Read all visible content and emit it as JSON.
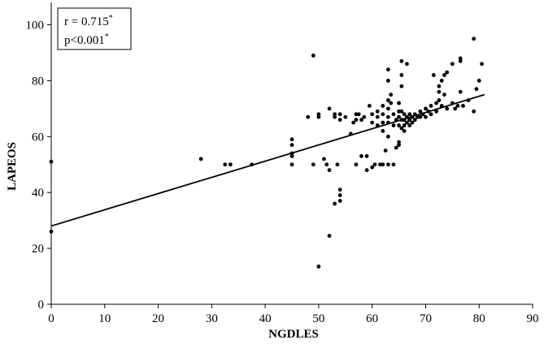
{
  "chart_data": {
    "type": "scatter",
    "title": "",
    "xlabel": "NGDLES",
    "ylabel": "LAPEOS",
    "xlim": [
      0,
      90
    ],
    "ylim": [
      0,
      108
    ],
    "xticks": [
      0,
      10,
      20,
      30,
      40,
      50,
      60,
      70,
      80,
      90
    ],
    "yticks": [
      0,
      20,
      40,
      60,
      80,
      100
    ],
    "grid": false,
    "annotation": {
      "r_text": "r = 0.715",
      "r_sup": "*",
      "p_text": "p<0.001",
      "p_sup": "*"
    },
    "regression": {
      "x": [
        0,
        81
      ],
      "y": [
        28,
        75
      ]
    },
    "points": [
      [
        0,
        51
      ],
      [
        0,
        26
      ],
      [
        28,
        52
      ],
      [
        32.5,
        50
      ],
      [
        33.5,
        50
      ],
      [
        37.5,
        50
      ],
      [
        45,
        59
      ],
      [
        45,
        57
      ],
      [
        45,
        54
      ],
      [
        45,
        53
      ],
      [
        45,
        50
      ],
      [
        48,
        67
      ],
      [
        49,
        89
      ],
      [
        49,
        50
      ],
      [
        50,
        68
      ],
      [
        50,
        67
      ],
      [
        50,
        13.5
      ],
      [
        51,
        52
      ],
      [
        51.5,
        50
      ],
      [
        52,
        70
      ],
      [
        52,
        48
      ],
      [
        52,
        24.5
      ],
      [
        53,
        67
      ],
      [
        53,
        68
      ],
      [
        53,
        36
      ],
      [
        53.5,
        50
      ],
      [
        54,
        41
      ],
      [
        54,
        39
      ],
      [
        54,
        37
      ],
      [
        54,
        68
      ],
      [
        54,
        66
      ],
      [
        55,
        67
      ],
      [
        56,
        61
      ],
      [
        56.5,
        65
      ],
      [
        57,
        50
      ],
      [
        57,
        68
      ],
      [
        57,
        66
      ],
      [
        57.5,
        68
      ],
      [
        58,
        53
      ],
      [
        58,
        66
      ],
      [
        58.5,
        67
      ],
      [
        59,
        53
      ],
      [
        59,
        48
      ],
      [
        59.5,
        71
      ],
      [
        60,
        68
      ],
      [
        60,
        65
      ],
      [
        60,
        49
      ],
      [
        60.5,
        50
      ],
      [
        61,
        69
      ],
      [
        61,
        67
      ],
      [
        61,
        64
      ],
      [
        61.5,
        50
      ],
      [
        62,
        71
      ],
      [
        62,
        68
      ],
      [
        62,
        65
      ],
      [
        62,
        62
      ],
      [
        62,
        50
      ],
      [
        62.5,
        55
      ],
      [
        63,
        84
      ],
      [
        63,
        80
      ],
      [
        63,
        73
      ],
      [
        63,
        70
      ],
      [
        63,
        67
      ],
      [
        63,
        65
      ],
      [
        63,
        60
      ],
      [
        63,
        50
      ],
      [
        63.5,
        75
      ],
      [
        63.5,
        72
      ],
      [
        64,
        68
      ],
      [
        64,
        64
      ],
      [
        64,
        50
      ],
      [
        64.5,
        66
      ],
      [
        64.5,
        56
      ],
      [
        65,
        72
      ],
      [
        65,
        69
      ],
      [
        65,
        67
      ],
      [
        65,
        64
      ],
      [
        65,
        58
      ],
      [
        65,
        57
      ],
      [
        65.5,
        87
      ],
      [
        65.5,
        82
      ],
      [
        65.5,
        78
      ],
      [
        65.5,
        69
      ],
      [
        65.5,
        66
      ],
      [
        65.5,
        63
      ],
      [
        66,
        68
      ],
      [
        66,
        66
      ],
      [
        66,
        64
      ],
      [
        66,
        62
      ],
      [
        66.5,
        86
      ],
      [
        66.5,
        67
      ],
      [
        66.5,
        65
      ],
      [
        67,
        68
      ],
      [
        67,
        66
      ],
      [
        67,
        64
      ],
      [
        67.5,
        67
      ],
      [
        67.5,
        65
      ],
      [
        68,
        68
      ],
      [
        68,
        66
      ],
      [
        68.5,
        67
      ],
      [
        69,
        69
      ],
      [
        69,
        67
      ],
      [
        69.5,
        68
      ],
      [
        70,
        70
      ],
      [
        70,
        67
      ],
      [
        70.5,
        69
      ],
      [
        71,
        71
      ],
      [
        71,
        68
      ],
      [
        71.5,
        82
      ],
      [
        72,
        72
      ],
      [
        72,
        69
      ],
      [
        72.5,
        78
      ],
      [
        72.5,
        76
      ],
      [
        72.5,
        73
      ],
      [
        73,
        80
      ],
      [
        73,
        71
      ],
      [
        73.5,
        82
      ],
      [
        73.5,
        75
      ],
      [
        74,
        83
      ],
      [
        74,
        70
      ],
      [
        75,
        86
      ],
      [
        75,
        72
      ],
      [
        75.5,
        70
      ],
      [
        76,
        71
      ],
      [
        76.5,
        88
      ],
      [
        76.5,
        87
      ],
      [
        76.5,
        76
      ],
      [
        77,
        71
      ],
      [
        78,
        73
      ],
      [
        79,
        95
      ],
      [
        79,
        69
      ],
      [
        79.5,
        77
      ],
      [
        80,
        80
      ],
      [
        80.5,
        86
      ]
    ]
  }
}
